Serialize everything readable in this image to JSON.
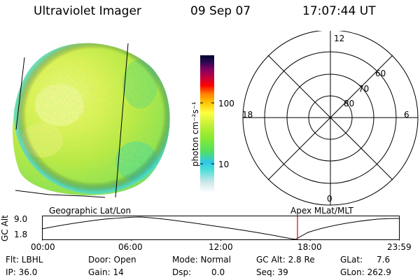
{
  "header": {
    "instrument": "Ultraviolet Imager",
    "date": "09 Sep 07",
    "time": "17:07:44 UT"
  },
  "colorbar": {
    "label": "photon cm⁻²s⁻¹",
    "scale": "log",
    "ticks": [
      "100",
      "10"
    ],
    "colors": [
      "#ffffff",
      "#c8e6e8",
      "#50e0d8",
      "#2ec8e8",
      "#52e060",
      "#8aea30",
      "#c8f038",
      "#ffff40",
      "#ffc000",
      "#ff8000",
      "#ff0000",
      "#c00040",
      "#800060",
      "#2a0a50",
      "#000030"
    ]
  },
  "polar_plot": {
    "clock_labels": [
      "12",
      "18",
      "6",
      "0"
    ],
    "lat_labels": [
      "60",
      "70",
      "80"
    ]
  },
  "timeline": {
    "axis_label": "GC Alt",
    "left_label": "Geographic Lat/Lon",
    "right_label": "Apex MLat/MLT",
    "y_ticks": [
      "9.0",
      "1.8"
    ],
    "x_ticks": [
      "00:00",
      "06:00",
      "12:00",
      "18:00",
      "23:59"
    ],
    "current_marker_time_hours": 17.13,
    "marker_color": "#e00000"
  },
  "info": {
    "flt_label": "Flt: LBHL",
    "ip_label": "IP: 36.0",
    "door_label": "Door: Open",
    "gain_label": "Gain: 14",
    "mode_label": "Mode: Normal",
    "dsp_label": "Dsp:",
    "dsp_value": "0.0",
    "gcalt_label": "GC Alt: 2.8 Re",
    "seq_label": "Seq: 39",
    "glat_label": "GLat:",
    "glat_value": "7.6",
    "glon_label": "GLon: 262.9"
  }
}
